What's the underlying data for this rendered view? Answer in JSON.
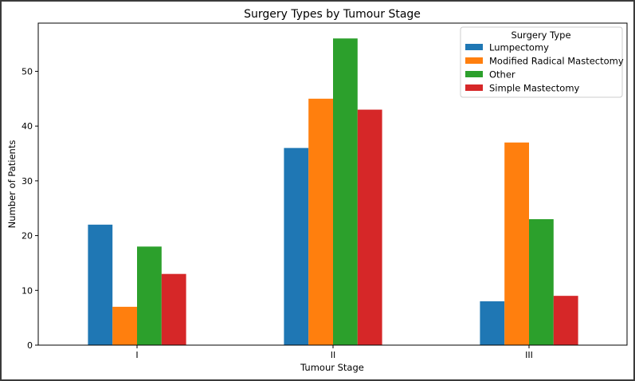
{
  "chart_data": {
    "type": "bar",
    "title": "Surgery Types by Tumour Stage",
    "xlabel": "Tumour Stage",
    "ylabel": "Number of Patients",
    "categories": [
      "I",
      "II",
      "III"
    ],
    "ylim": [
      0,
      58.8
    ],
    "yticks": [
      0,
      10,
      20,
      30,
      40,
      50
    ],
    "grid": false,
    "legend": {
      "title": "Surgery Type",
      "placement": "top-right"
    },
    "series": [
      {
        "name": "Lumpectomy",
        "color": "#1f77b4",
        "values": [
          22,
          36,
          8
        ]
      },
      {
        "name": "Modified Radical Mastectomy",
        "color": "#ff7f0e",
        "values": [
          7,
          45,
          37
        ]
      },
      {
        "name": "Other",
        "color": "#2ca02c",
        "values": [
          18,
          56,
          23
        ]
      },
      {
        "name": "Simple Mastectomy",
        "color": "#d62728",
        "values": [
          13,
          43,
          9
        ]
      }
    ]
  }
}
